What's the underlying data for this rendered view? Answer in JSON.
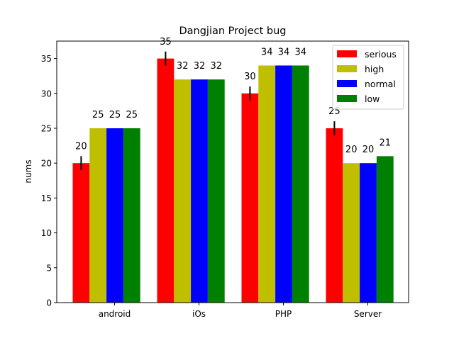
{
  "chart_data": {
    "type": "bar",
    "title": "Dangjian Project bug",
    "xlabel": "",
    "ylabel": "nums",
    "ylim": [
      0,
      37.5
    ],
    "yticks": [
      0,
      5,
      10,
      15,
      20,
      25,
      30,
      35
    ],
    "categories": [
      "android",
      "iOs",
      "PHP",
      "Server"
    ],
    "series": [
      {
        "name": "serious",
        "color": "#ff0000",
        "values": [
          20,
          35,
          30,
          25
        ],
        "error": [
          1,
          1,
          1,
          1
        ]
      },
      {
        "name": "high",
        "color": "#bfbf00",
        "values": [
          25,
          32,
          34,
          20
        ]
      },
      {
        "name": "normal",
        "color": "#0000ff",
        "values": [
          25,
          32,
          34,
          20
        ]
      },
      {
        "name": "low",
        "color": "#008000",
        "values": [
          25,
          32,
          34,
          21
        ]
      }
    ],
    "legend_position": "top-right",
    "grid": false
  }
}
